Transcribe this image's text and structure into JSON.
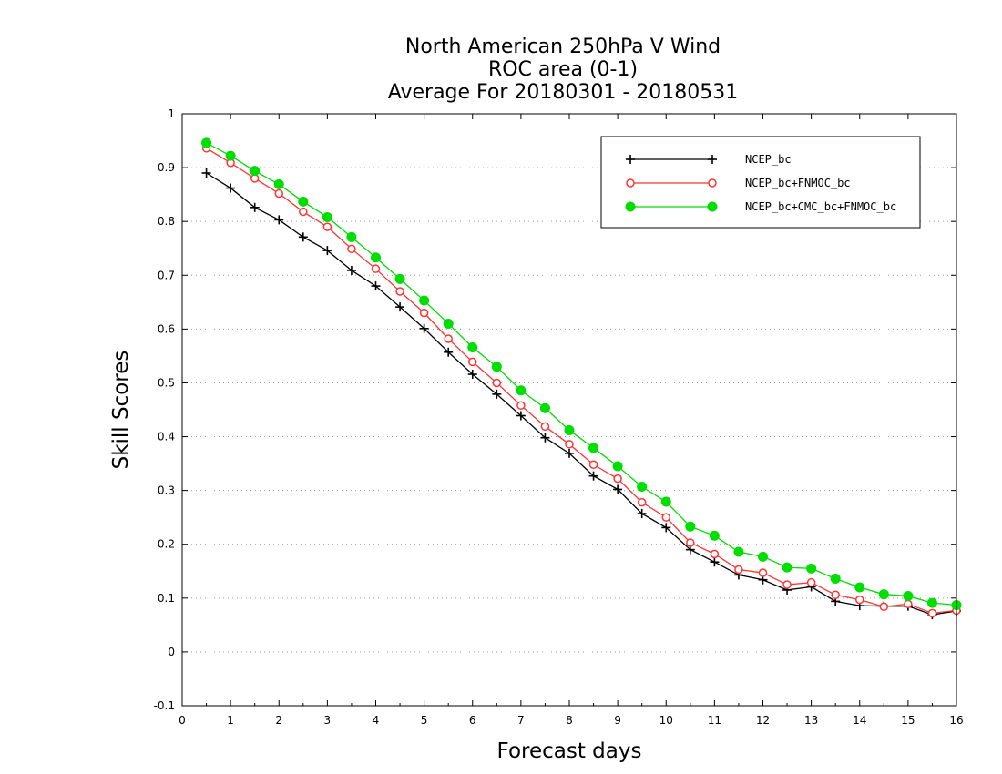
{
  "chart_data": {
    "type": "line",
    "title_lines": [
      "North American 250hPa V Wind",
      "ROC area (0-1)",
      "Average For 20180301 - 20180531"
    ],
    "xlabel": "Forecast days",
    "ylabel": "Skill Scores",
    "xlim": [
      0,
      16
    ],
    "ylim": [
      -0.1,
      1
    ],
    "x_ticks": [
      "0",
      "1",
      "2",
      "3",
      "4",
      "5",
      "6",
      "7",
      "8",
      "9",
      "10",
      "11",
      "12",
      "13",
      "14",
      "15",
      "16"
    ],
    "y_ticks": [
      "-0.1",
      "0",
      "0.1",
      "0.2",
      "0.3",
      "0.4",
      "0.5",
      "0.6",
      "0.7",
      "0.8",
      "0.9",
      "1"
    ],
    "grid": "horizontal dotted",
    "legend_position": "top-right",
    "x": [
      0.5,
      1,
      1.5,
      2,
      2.5,
      3,
      3.5,
      4,
      4.5,
      5,
      5.5,
      6,
      6.5,
      7,
      7.5,
      8,
      8.5,
      9,
      9.5,
      10,
      10.5,
      11,
      11.5,
      12,
      12.5,
      13,
      13.5,
      14,
      14.5,
      15,
      15.5,
      16
    ],
    "series": [
      {
        "name": "NCEP_bc",
        "color": "#000000",
        "marker": "plus",
        "values": [
          0.89,
          0.862,
          0.826,
          0.803,
          0.771,
          0.746,
          0.709,
          0.68,
          0.641,
          0.601,
          0.557,
          0.516,
          0.479,
          0.439,
          0.398,
          0.369,
          0.327,
          0.302,
          0.257,
          0.231,
          0.19,
          0.167,
          0.143,
          0.134,
          0.115,
          0.121,
          0.094,
          0.086,
          0.085,
          0.085,
          0.069,
          0.076
        ]
      },
      {
        "name": "NCEP_bc+FNMOC_bc",
        "color": "#ff3333",
        "marker": "open-circle",
        "values": [
          0.936,
          0.909,
          0.88,
          0.852,
          0.818,
          0.79,
          0.749,
          0.712,
          0.67,
          0.63,
          0.582,
          0.539,
          0.5,
          0.458,
          0.419,
          0.386,
          0.348,
          0.322,
          0.278,
          0.25,
          0.203,
          0.182,
          0.153,
          0.147,
          0.125,
          0.129,
          0.106,
          0.097,
          0.084,
          0.089,
          0.072,
          0.077
        ]
      },
      {
        "name": "NCEP_bc+CMC_bc+FNMOC_bc",
        "color": "#00dd00",
        "marker": "filled-circle",
        "values": [
          0.946,
          0.922,
          0.894,
          0.869,
          0.837,
          0.808,
          0.771,
          0.733,
          0.693,
          0.653,
          0.61,
          0.566,
          0.53,
          0.486,
          0.453,
          0.412,
          0.379,
          0.345,
          0.307,
          0.279,
          0.233,
          0.216,
          0.186,
          0.177,
          0.157,
          0.155,
          0.136,
          0.12,
          0.107,
          0.104,
          0.091,
          0.087
        ]
      }
    ]
  }
}
